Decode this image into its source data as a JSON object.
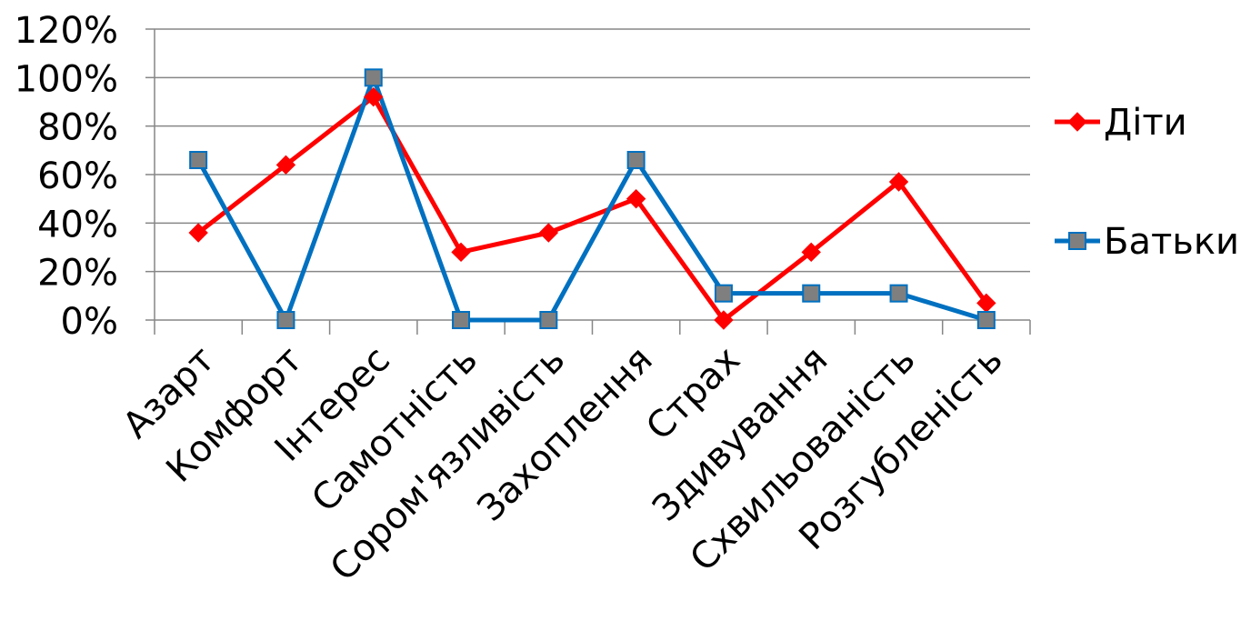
{
  "chart_data": {
    "type": "line",
    "title": "",
    "xlabel": "",
    "ylabel": "",
    "categories": [
      "Азарт",
      "Комфорт",
      "Інтерес",
      "Самотність",
      "Сором'язливість",
      "Захоплення",
      "Страх",
      "Здивування",
      "Схвильованість",
      "Розгубленість"
    ],
    "y_ticks": [
      "0%",
      "20%",
      "40%",
      "60%",
      "80%",
      "100%",
      "120%"
    ],
    "ylim": [
      0,
      1.2
    ],
    "grid": true,
    "legend_position": "right",
    "series": [
      {
        "name": "Діти",
        "color": "#FF0000",
        "marker": "diamond",
        "values": [
          0.36,
          0.64,
          0.92,
          0.28,
          0.36,
          0.5,
          0.0,
          0.28,
          0.57,
          0.07
        ]
      },
      {
        "name": "Батьки",
        "color": "#0070C0",
        "marker": "square",
        "marker_color": "#7F7F7F",
        "values": [
          0.66,
          0.0,
          1.0,
          0.0,
          0.0,
          0.66,
          0.11,
          0.11,
          0.11,
          0.0
        ]
      }
    ]
  }
}
